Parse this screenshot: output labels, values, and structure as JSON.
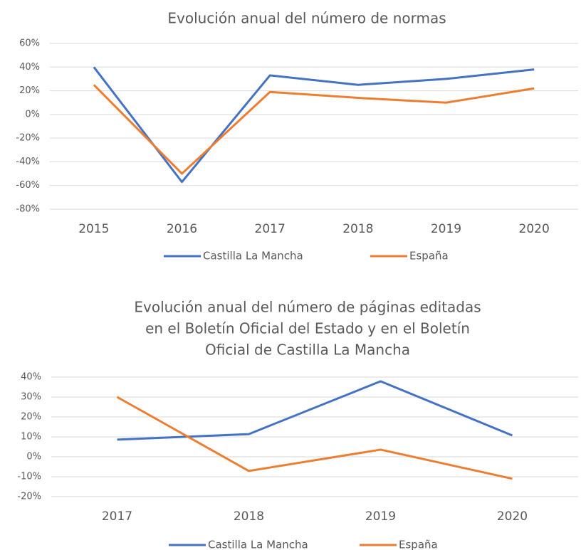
{
  "chart_data": [
    {
      "type": "line",
      "title": "Evolución anual del número de normas",
      "categories": [
        "2015",
        "2016",
        "2017",
        "2018",
        "2019",
        "2020"
      ],
      "series": [
        {
          "name": "Castilla La Mancha",
          "color": "#4472c4",
          "values": [
            40,
            -57,
            33,
            25,
            30,
            38
          ]
        },
        {
          "name": "España",
          "color": "#ed7d31",
          "values": [
            25,
            -50,
            19,
            14,
            10,
            22
          ]
        }
      ],
      "ylim": [
        -80,
        60
      ],
      "yticks": [
        {
          "value": -80,
          "label": "-80%"
        },
        {
          "value": -60,
          "label": "-60%"
        },
        {
          "value": -40,
          "label": "-40%"
        },
        {
          "value": -20,
          "label": "-20%"
        },
        {
          "value": 0,
          "label": "0%"
        },
        {
          "value": 20,
          "label": "20%"
        },
        {
          "value": 40,
          "label": "40%"
        },
        {
          "value": 60,
          "label": "60%"
        }
      ],
      "grid": true,
      "legend": "bottom"
    },
    {
      "type": "line",
      "title": [
        "Evolución anual del número de páginas editadas",
        "en el Boletín Oficial del Estado y en el Boletín",
        "Oficial de Castilla La Mancha"
      ],
      "categories": [
        "2017",
        "2018",
        "2019",
        "2020"
      ],
      "series": [
        {
          "name": "Castilla La Mancha",
          "color": "#4472c4",
          "values": [
            8.6,
            11.4,
            37.9,
            10.7
          ]
        },
        {
          "name": "España",
          "color": "#ed7d31",
          "values": [
            30,
            -7.1,
            3.6,
            -11
          ]
        }
      ],
      "ylim": [
        -20,
        40
      ],
      "yticks": [
        {
          "value": -20,
          "label": "-20%"
        },
        {
          "value": -10,
          "label": "-10%"
        },
        {
          "value": 0,
          "label": "0%"
        },
        {
          "value": 10,
          "label": "10%"
        },
        {
          "value": 20,
          "label": "20%"
        },
        {
          "value": 30,
          "label": "30%"
        },
        {
          "value": 40,
          "label": "40%"
        }
      ],
      "grid": true,
      "legend": "bottom"
    }
  ]
}
